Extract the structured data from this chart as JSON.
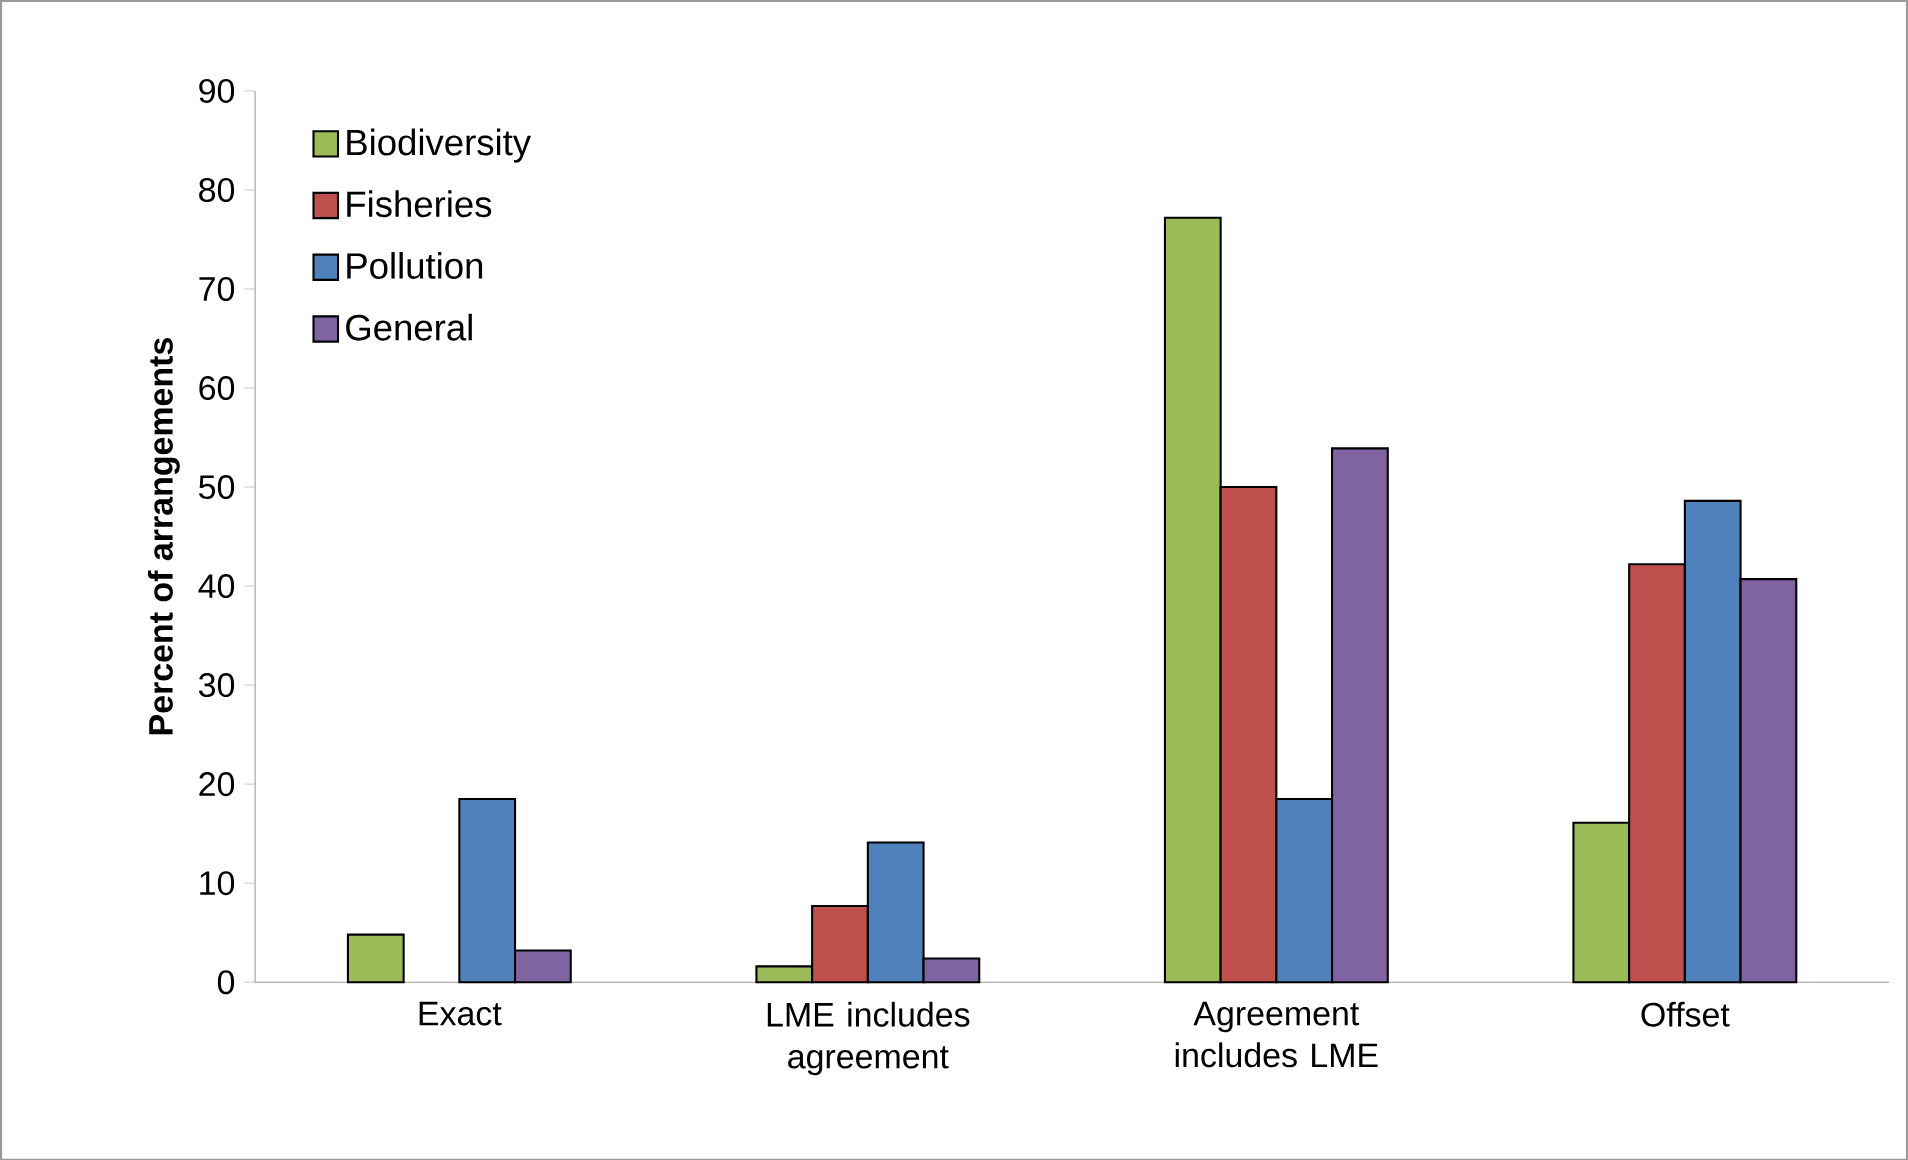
{
  "chart_data": {
    "type": "bar",
    "ylabel": "Percent of arrangements",
    "categories": [
      "Exact",
      "LME includes agreement",
      "Agreement includes LME",
      "Offset"
    ],
    "series": [
      {
        "name": "Biodiversity",
        "color": "#9bbb59",
        "values": [
          4.8,
          1.6,
          77.2,
          16.1
        ]
      },
      {
        "name": "Fisheries",
        "color": "#c0504d",
        "values": [
          null,
          7.7,
          50,
          42.2
        ]
      },
      {
        "name": "Pollution",
        "color": "#4f81bd",
        "values": [
          18.5,
          14.1,
          18.5,
          48.6
        ]
      },
      {
        "name": "General",
        "color": "#8064a2",
        "values": [
          3.2,
          2.4,
          53.9,
          40.7
        ]
      }
    ],
    "ylim": [
      0,
      90
    ],
    "yticks": [
      0,
      10,
      20,
      30,
      40,
      50,
      60,
      70,
      80,
      90
    ],
    "grid": false,
    "legend": "top left"
  }
}
